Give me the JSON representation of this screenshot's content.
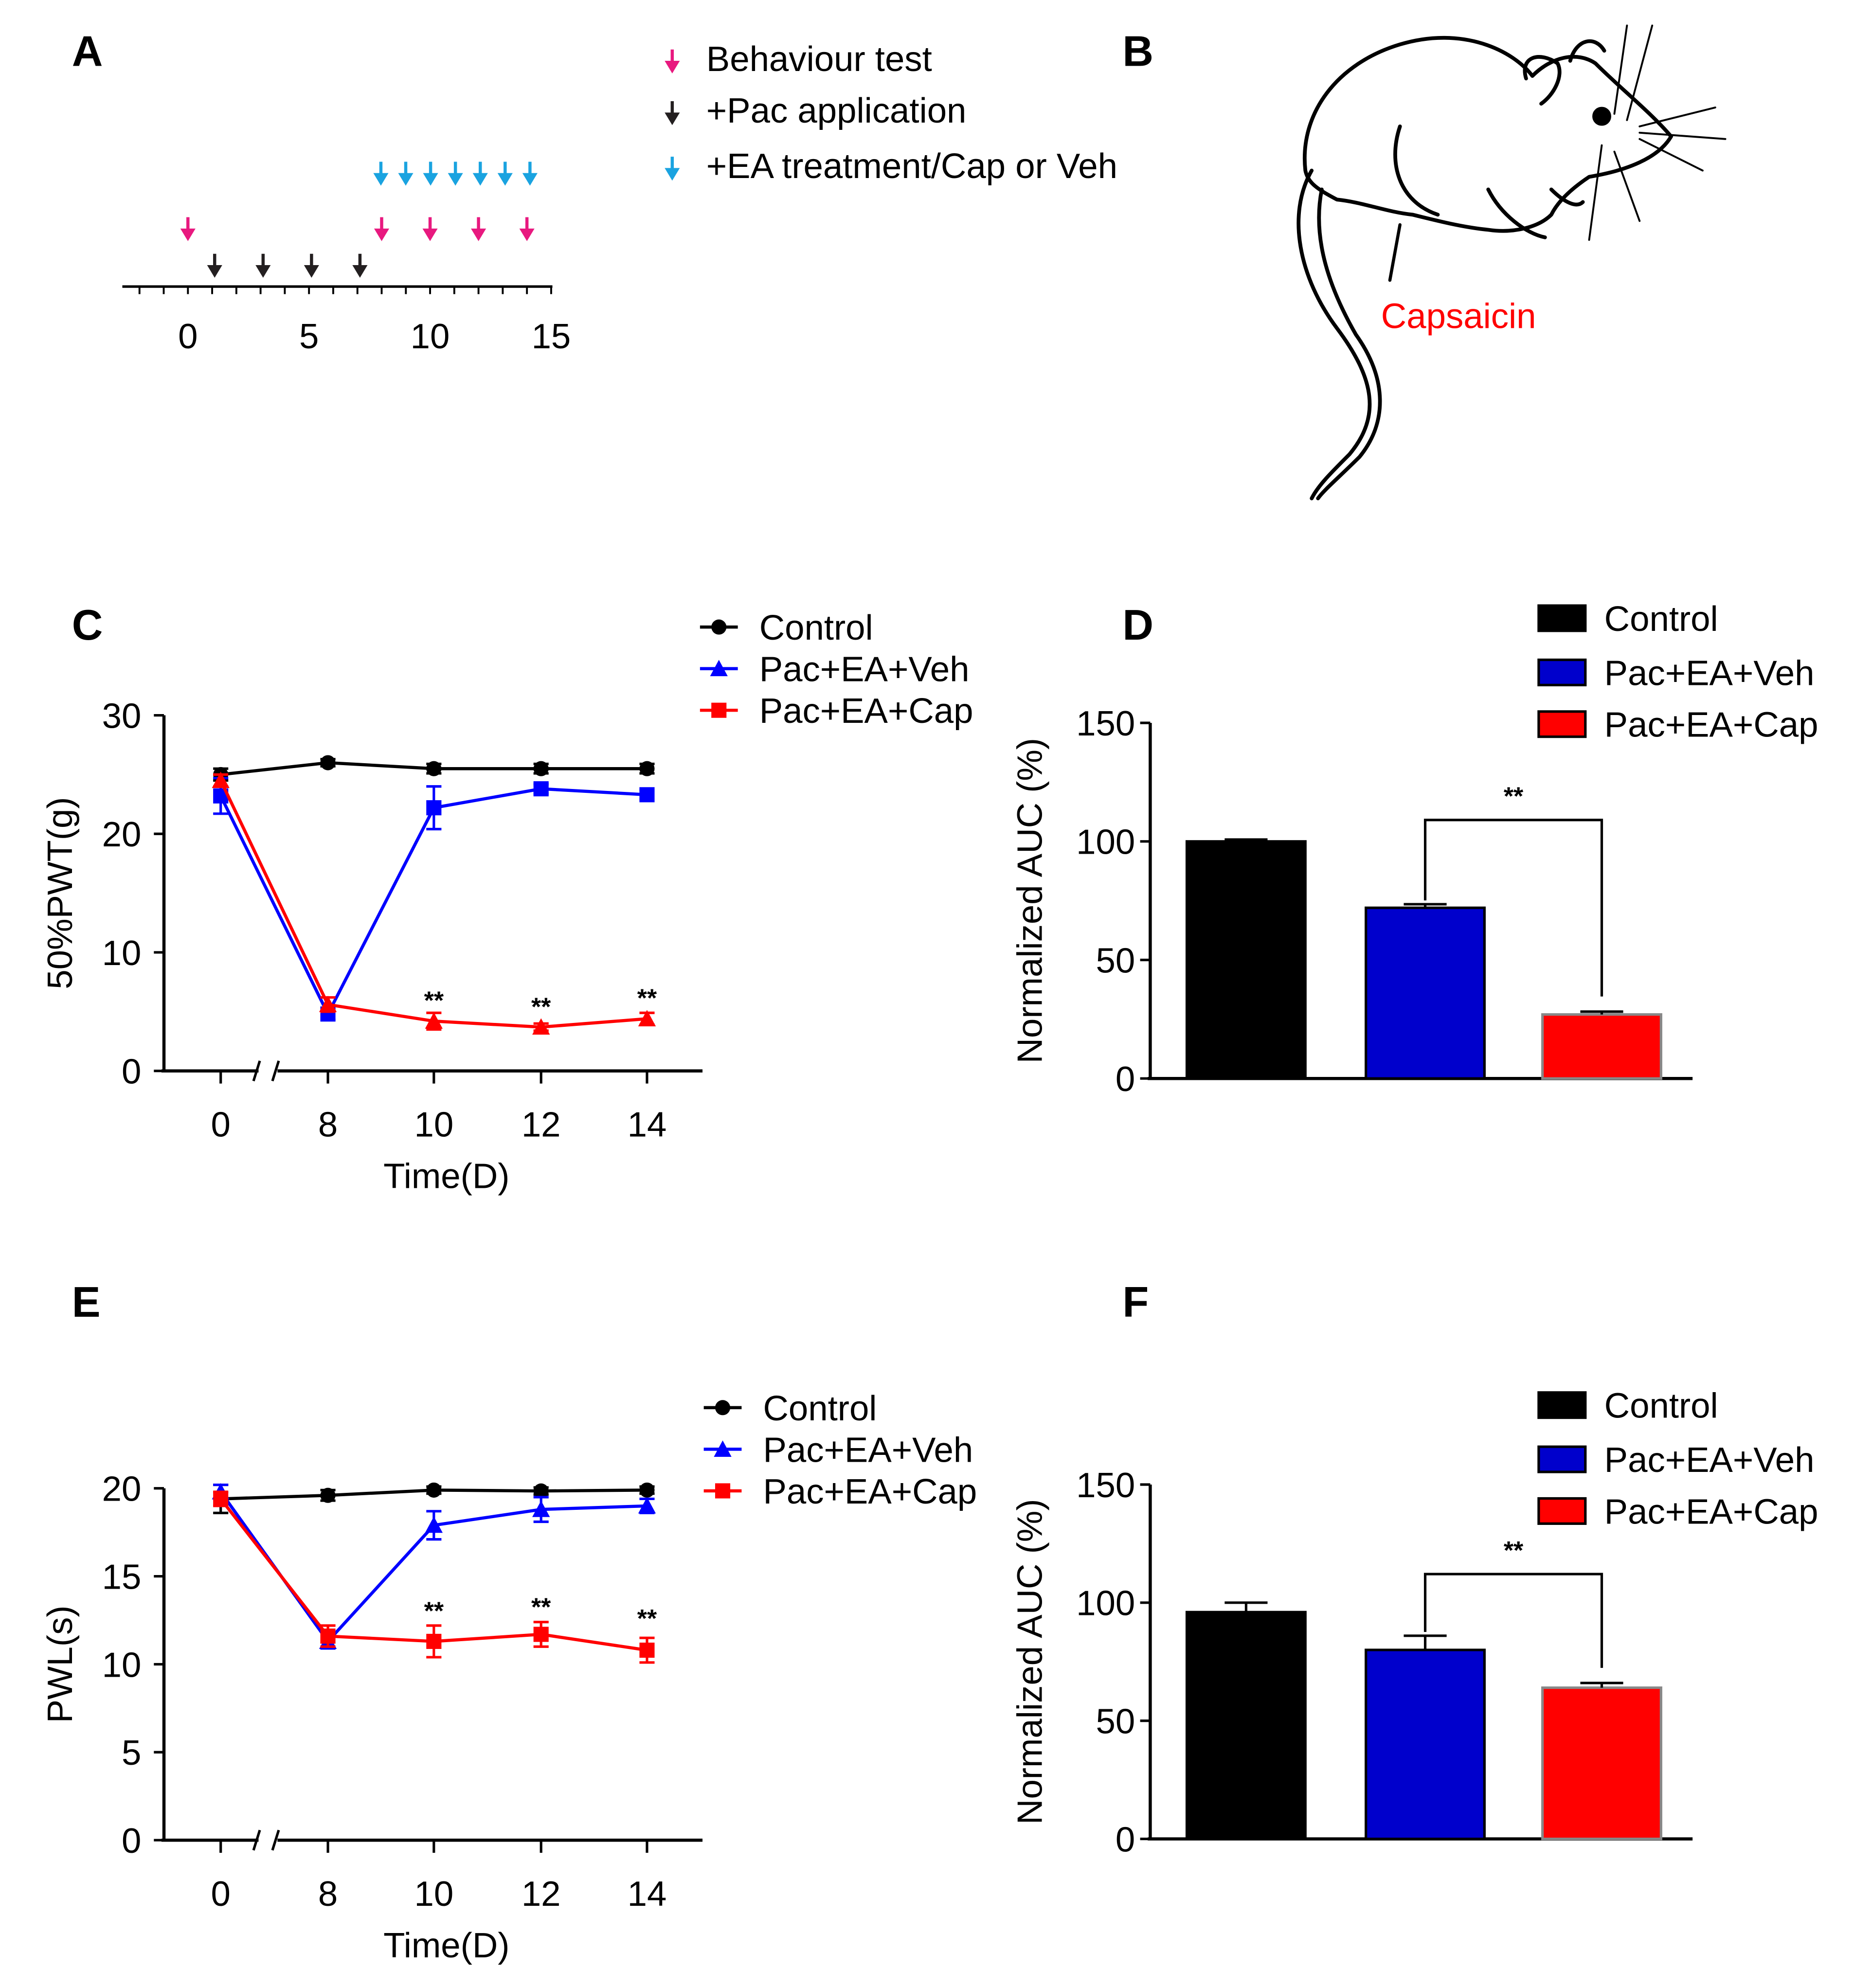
{
  "panels": {
    "a": "A",
    "b": "B",
    "c": "C",
    "d": "D",
    "e": "E",
    "f": "F"
  },
  "timeline": {
    "legend": [
      {
        "label": "Behaviour test",
        "color": "#e8197f"
      },
      {
        "label": "+Pac application",
        "color": "#231f20"
      },
      {
        "label": "+EA treatment/Cap or Veh",
        "color": "#1aa3e0"
      }
    ],
    "ticks": [
      "0",
      "5",
      "10",
      "15"
    ],
    "axis_range": [
      -3,
      15
    ],
    "behaviour_days": [
      0,
      8,
      10,
      12,
      14
    ],
    "pac_days": [
      1,
      3,
      5,
      7
    ],
    "ea_days": [
      8,
      9,
      10,
      11,
      12,
      13,
      14
    ]
  },
  "mouse": {
    "label": "Capsaicin",
    "label_color": "#ff0000"
  },
  "chart_data": [
    {
      "id": "C",
      "type": "line",
      "xlabel": "Time(D)",
      "ylabel": "50%PWT(g)",
      "x": [
        0,
        8,
        10,
        12,
        14
      ],
      "x_ticks": [
        "0",
        "8",
        "10",
        "12",
        "14"
      ],
      "ylim": [
        0,
        30
      ],
      "y_ticks": [
        "0",
        "10",
        "20",
        "30"
      ],
      "y_tick_values": [
        0,
        10,
        20,
        30
      ],
      "axis_break": true,
      "series": [
        {
          "name": "Control",
          "color": "#000000",
          "marker": "circle",
          "legend_marker": "circle",
          "values": [
            25,
            26,
            25.5,
            25.5,
            25.5
          ],
          "errors": [
            0.5,
            0.3,
            0.4,
            0.4,
            0.4
          ]
        },
        {
          "name": "Pac+EA+Veh",
          "color": "#0000ff",
          "marker": "square",
          "legend_marker": "triangle",
          "values": [
            23.2,
            4.8,
            22.2,
            23.8,
            23.3
          ],
          "errors": [
            1.5,
            0.5,
            1.8,
            0.4,
            0.4
          ]
        },
        {
          "name": "Pac+EA+Cap",
          "color": "#ff0000",
          "marker": "triangle",
          "legend_marker": "square",
          "values": [
            24.5,
            5.6,
            4.2,
            3.7,
            4.4
          ],
          "errors": [
            0.5,
            0.6,
            0.7,
            0.3,
            0.5
          ]
        }
      ],
      "annotations": [
        {
          "x": 10,
          "text": "**"
        },
        {
          "x": 12,
          "text": "**"
        },
        {
          "x": 14,
          "text": "**"
        }
      ],
      "legend": "top-right"
    },
    {
      "id": "D",
      "type": "bar",
      "ylabel": "Normalized AUC (%)",
      "categories": [
        "Control",
        "Pac+EA+Veh",
        "Pac+EA+Cap"
      ],
      "colors": [
        "#000000",
        "#0000cc",
        "#ff0000"
      ],
      "values": [
        100,
        72,
        27
      ],
      "errors": [
        0.8,
        1.5,
        1.2
      ],
      "ylim": [
        0,
        150
      ],
      "y_ticks": [
        "0",
        "50",
        "100",
        "150"
      ],
      "y_tick_values": [
        0,
        50,
        100,
        150
      ],
      "significance": {
        "between": [
          1,
          2
        ],
        "text": "**"
      },
      "legend": "top-right"
    },
    {
      "id": "E",
      "type": "line",
      "xlabel": "Time(D)",
      "ylabel": "PWL(s)",
      "x": [
        0,
        8,
        10,
        12,
        14
      ],
      "x_ticks": [
        "0",
        "8",
        "10",
        "12",
        "14"
      ],
      "ylim": [
        0,
        20
      ],
      "y_ticks": [
        "0",
        "5",
        "10",
        "15",
        "20"
      ],
      "y_tick_values": [
        0,
        5,
        10,
        15,
        20
      ],
      "axis_break": true,
      "series": [
        {
          "name": "Control",
          "color": "#000000",
          "marker": "circle",
          "legend_marker": "circle",
          "values": [
            19.4,
            19.6,
            19.9,
            19.85,
            19.9
          ],
          "errors": [
            0.8,
            0.3,
            0.2,
            0.2,
            0.2
          ]
        },
        {
          "name": "Pac+EA+Veh",
          "color": "#0000ff",
          "marker": "triangle",
          "legend_marker": "triangle",
          "values": [
            19.8,
            11.3,
            17.9,
            18.8,
            19.0
          ],
          "errors": [
            0.4,
            0.4,
            0.8,
            0.7,
            0.4
          ]
        },
        {
          "name": "Pac+EA+Cap",
          "color": "#ff0000",
          "marker": "square",
          "legend_marker": "square",
          "values": [
            19.4,
            11.6,
            11.3,
            11.7,
            10.8
          ],
          "errors": [
            0.4,
            0.6,
            0.9,
            0.7,
            0.7
          ]
        }
      ],
      "annotations": [
        {
          "x": 10,
          "text": "**"
        },
        {
          "x": 12,
          "text": "**"
        },
        {
          "x": 14,
          "text": "**"
        }
      ],
      "legend": "top-right"
    },
    {
      "id": "F",
      "type": "bar",
      "ylabel": "Normalized AUC (%)",
      "categories": [
        "Control",
        "Pac+EA+Veh",
        "Pac+EA+Cap"
      ],
      "colors": [
        "#000000",
        "#0000cc",
        "#ff0000"
      ],
      "values": [
        96,
        80,
        64
      ],
      "errors": [
        4,
        6,
        2
      ],
      "ylim": [
        0,
        150
      ],
      "y_ticks": [
        "0",
        "50",
        "100",
        "150"
      ],
      "y_tick_values": [
        0,
        50,
        100,
        150
      ],
      "significance": {
        "between": [
          1,
          2
        ],
        "text": "**"
      },
      "legend": "top-right"
    }
  ]
}
